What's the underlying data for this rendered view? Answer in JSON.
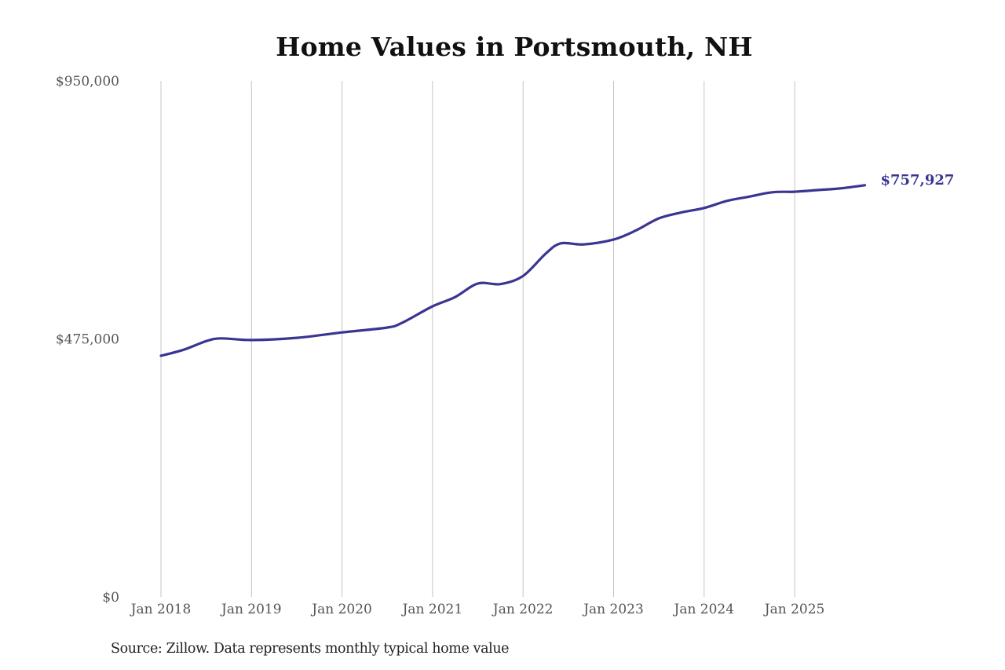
{
  "chart_title": "Home Values in Portsmouth, NH",
  "source_note": "Source: Zillow. Data represents monthly typical home value",
  "colors": {
    "line": "#3a3592",
    "end_label": "#3a3592",
    "gridline": "#c4c4c4",
    "tick_text": "#555555",
    "title": "#111111"
  },
  "y_axis": {
    "ticks": [
      {
        "value": 950000,
        "label": "$950,000"
      },
      {
        "value": 475000,
        "label": "$475,000"
      },
      {
        "value": 0,
        "label": "$0"
      }
    ]
  },
  "x_axis": {
    "ticks": [
      {
        "t": 0,
        "label": "Jan 2018"
      },
      {
        "t": 12,
        "label": "Jan 2019"
      },
      {
        "t": 24,
        "label": "Jan 2020"
      },
      {
        "t": 36,
        "label": "Jan 2021"
      },
      {
        "t": 48,
        "label": "Jan 2022"
      },
      {
        "t": 60,
        "label": "Jan 2023"
      },
      {
        "t": 72,
        "label": "Jan 2024"
      },
      {
        "t": 84,
        "label": "Jan 2025"
      }
    ]
  },
  "end_label": "$757,927",
  "chart_data": {
    "type": "line",
    "title": "Home Values in Portsmouth, NH",
    "xlabel": "",
    "ylabel": "",
    "ylim": [
      0,
      950000
    ],
    "grid": {
      "vertical": true,
      "horizontal": false
    },
    "legend": "none",
    "x_tick_labels": [
      "Jan 2018",
      "Jan 2019",
      "Jan 2020",
      "Jan 2021",
      "Jan 2022",
      "Jan 2023",
      "Jan 2024",
      "Jan 2025"
    ],
    "y_tick_labels": [
      "$0",
      "$475,000",
      "$950,000"
    ],
    "annotations": [
      {
        "text": "$757,927",
        "at": "Oct 2025",
        "value": 757927
      }
    ],
    "series": [
      {
        "name": "Typical home value",
        "x": [
          "Jan 2018",
          "Apr 2018",
          "Jul 2018",
          "Sep 2018",
          "Jan 2019",
          "Jul 2019",
          "Jan 2020",
          "Jul 2020",
          "Sep 2020",
          "Jan 2021",
          "Apr 2021",
          "Jul 2021",
          "Oct 2021",
          "Jan 2022",
          "Apr 2022",
          "Jun 2022",
          "Sep 2022",
          "Jan 2023",
          "Apr 2023",
          "Jul 2023",
          "Oct 2023",
          "Jan 2024",
          "Apr 2024",
          "Jul 2024",
          "Oct 2024",
          "Jan 2025",
          "Apr 2025",
          "Jul 2025",
          "Oct 2025"
        ],
        "t": [
          0,
          3,
          6,
          8,
          12,
          18,
          24,
          30,
          32,
          36,
          39,
          42,
          45,
          48,
          51,
          53,
          56,
          60,
          63,
          66,
          69,
          72,
          75,
          78,
          81,
          84,
          87,
          90,
          93.3
        ],
        "values": [
          444000,
          455000,
          471000,
          476000,
          473000,
          477000,
          487000,
          496000,
          505000,
          535000,
          552000,
          577000,
          576000,
          591000,
          632000,
          651000,
          649000,
          658000,
          675000,
          697000,
          708000,
          716000,
          729000,
          737000,
          745000,
          746000,
          749000,
          752000,
          757927
        ]
      }
    ]
  }
}
